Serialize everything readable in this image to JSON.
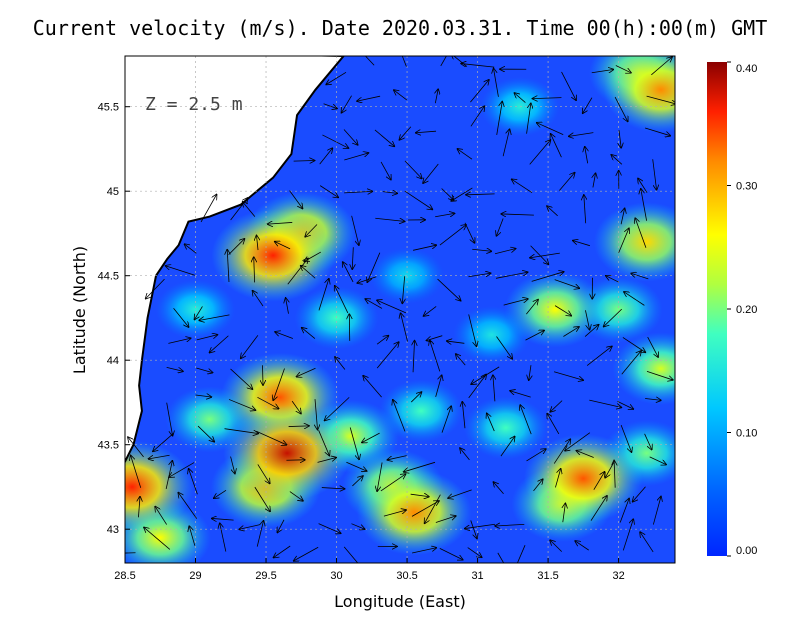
{
  "title": "Current velocity (m/s). Date 2020.03.31. Time 00(h):00(m) GMT",
  "depth_label": "Z = 2.5 m",
  "xlabel": "Longitude (East)",
  "ylabel": "Latitude (North)",
  "x_ticks": [
    "28.5",
    "29",
    "29.5",
    "30",
    "30.5",
    "31",
    "31.5",
    "32"
  ],
  "y_ticks": [
    "43",
    "43.5",
    "44",
    "44.5",
    "45",
    "45.5"
  ],
  "colorbar_ticks": [
    "0.40",
    "0.30",
    "0.20",
    "0.10",
    "0.00"
  ],
  "colors": {
    "land": "#ffffff",
    "coastline": "#000000",
    "grid": "#b0b0b0",
    "arrow": "#000000"
  },
  "chart_data": {
    "type": "heatmap",
    "title": "Current velocity (m/s). Date 2020.03.31. Time 00(h):00(m) GMT",
    "xlabel": "Longitude (East)",
    "ylabel": "Latitude (North)",
    "xlim": [
      28.5,
      32.4
    ],
    "ylim": [
      42.8,
      45.8
    ],
    "colorbar": {
      "min": 0.0,
      "max": 0.4,
      "ticks": [
        0.0,
        0.1,
        0.2,
        0.3,
        0.4
      ],
      "colormap": "jet"
    },
    "grid": true,
    "coastline": [
      [
        28.5,
        43.4
      ],
      [
        28.56,
        43.5
      ],
      [
        28.62,
        43.7
      ],
      [
        28.6,
        43.85
      ],
      [
        28.62,
        44.0
      ],
      [
        28.66,
        44.25
      ],
      [
        28.72,
        44.5
      ],
      [
        28.8,
        44.6
      ],
      [
        28.88,
        44.68
      ],
      [
        28.95,
        44.82
      ],
      [
        29.1,
        44.85
      ],
      [
        29.32,
        44.92
      ],
      [
        29.55,
        45.08
      ],
      [
        29.68,
        45.22
      ],
      [
        29.72,
        45.45
      ],
      [
        29.85,
        45.6
      ],
      [
        30.05,
        45.8
      ]
    ],
    "hotspots": [
      {
        "lon": 29.55,
        "lat": 44.62,
        "speed": 0.36
      },
      {
        "lon": 29.75,
        "lat": 44.75,
        "speed": 0.3
      },
      {
        "lon": 29.6,
        "lat": 43.78,
        "speed": 0.34
      },
      {
        "lon": 29.65,
        "lat": 43.45,
        "speed": 0.38
      },
      {
        "lon": 29.5,
        "lat": 43.25,
        "speed": 0.3
      },
      {
        "lon": 30.55,
        "lat": 43.1,
        "speed": 0.32
      },
      {
        "lon": 30.4,
        "lat": 43.25,
        "speed": 0.26
      },
      {
        "lon": 31.75,
        "lat": 43.3,
        "speed": 0.34
      },
      {
        "lon": 31.6,
        "lat": 43.15,
        "speed": 0.26
      },
      {
        "lon": 28.55,
        "lat": 43.25,
        "speed": 0.36
      },
      {
        "lon": 28.75,
        "lat": 42.95,
        "speed": 0.26
      },
      {
        "lon": 32.3,
        "lat": 45.6,
        "speed": 0.32
      },
      {
        "lon": 32.15,
        "lat": 45.7,
        "speed": 0.26
      },
      {
        "lon": 32.2,
        "lat": 44.7,
        "speed": 0.28
      },
      {
        "lon": 31.55,
        "lat": 44.3,
        "speed": 0.26
      },
      {
        "lon": 32.3,
        "lat": 43.95,
        "speed": 0.24
      },
      {
        "lon": 30.1,
        "lat": 43.55,
        "speed": 0.24
      },
      {
        "lon": 30.0,
        "lat": 44.25,
        "speed": 0.18
      },
      {
        "lon": 29.1,
        "lat": 43.65,
        "speed": 0.2
      },
      {
        "lon": 30.6,
        "lat": 43.7,
        "speed": 0.18
      },
      {
        "lon": 31.2,
        "lat": 43.6,
        "speed": 0.18
      },
      {
        "lon": 31.1,
        "lat": 44.15,
        "speed": 0.15
      },
      {
        "lon": 29.0,
        "lat": 44.3,
        "speed": 0.16
      },
      {
        "lon": 32.0,
        "lat": 44.3,
        "speed": 0.2
      },
      {
        "lon": 32.2,
        "lat": 43.45,
        "speed": 0.2
      },
      {
        "lon": 31.3,
        "lat": 45.5,
        "speed": 0.16
      },
      {
        "lon": 30.5,
        "lat": 44.5,
        "speed": 0.14
      }
    ]
  }
}
